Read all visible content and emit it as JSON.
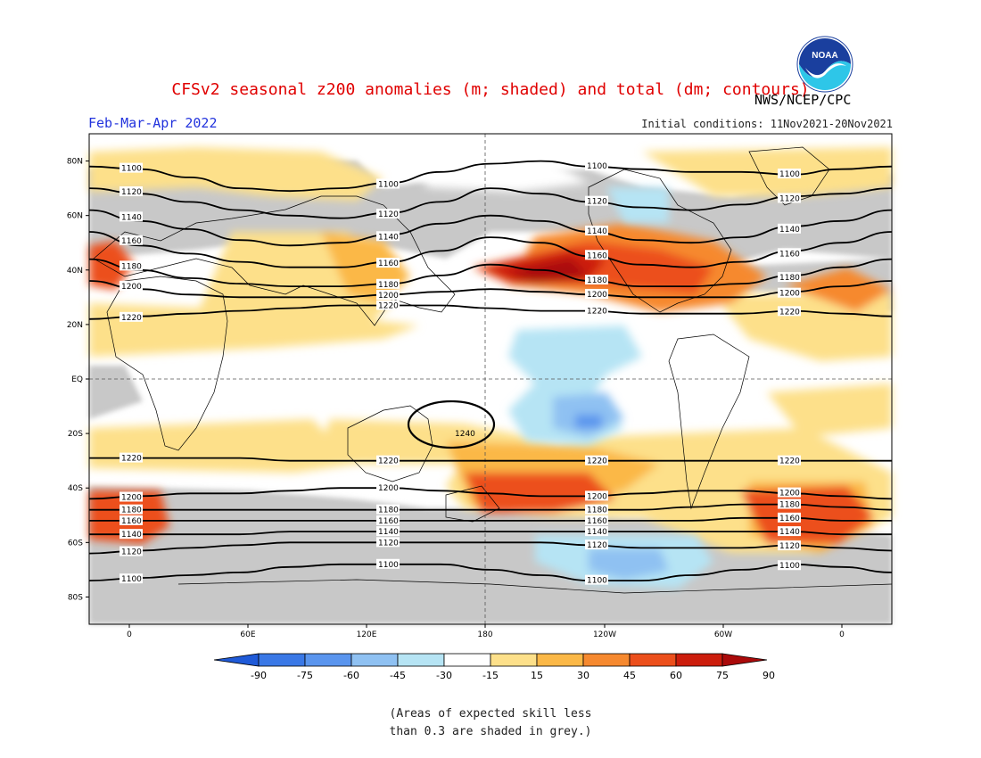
{
  "title": "CFSv2 seasonal z200 anomalies (m; shaded) and total (dm; contours)",
  "agency": "NWS/NCEP/CPC",
  "period": "Feb-Mar-Apr 2022",
  "initial_conditions": "Initial conditions: 11Nov2021-20Nov2021",
  "logo_text": "NOAA",
  "note": "(Areas of expected skill less\nthan 0.3 are shaded in grey.)",
  "lat_ticks": [
    "80N",
    "60N",
    "40N",
    "20N",
    "EQ",
    "20S",
    "40S",
    "60S",
    "80S"
  ],
  "lon_ticks": [
    "0",
    "60E",
    "120E",
    "180",
    "120W",
    "60W",
    "0"
  ],
  "colorbar": {
    "labels": [
      "-90",
      "-75",
      "-60",
      "-45",
      "-30",
      "-15",
      "15",
      "30",
      "45",
      "60",
      "75",
      "90"
    ],
    "colors": [
      "#1f5ad8",
      "#3a78e6",
      "#5a95ee",
      "#8fc1f2",
      "#b6e4f4",
      "#ffffff",
      "#fde08a",
      "#fbb847",
      "#f6892f",
      "#ec4f1c",
      "#cc1d0c",
      "#aa0a0a"
    ]
  },
  "contours": [
    {
      "label": "1100",
      "lat": [
        78,
        77,
        74,
        70,
        69,
        70,
        72,
        76,
        79,
        80,
        78,
        77,
        76,
        76,
        75,
        77,
        78
      ]
    },
    {
      "label": "1120",
      "lat": [
        70,
        68,
        65,
        62,
        60,
        59,
        61,
        65,
        70,
        68,
        65,
        63,
        62,
        64,
        67,
        68,
        70
      ]
    },
    {
      "label": "1140",
      "lat": [
        62,
        58,
        55,
        51,
        49,
        50,
        53,
        57,
        60,
        58,
        54,
        51,
        50,
        52,
        56,
        58,
        62
      ]
    },
    {
      "label": "1160",
      "lat": [
        54,
        49,
        46,
        43,
        41,
        41,
        43,
        47,
        52,
        50,
        45,
        42,
        41,
        43,
        47,
        50,
        54
      ]
    },
    {
      "label": "1180",
      "lat": [
        44,
        40,
        37,
        35,
        34,
        34,
        35,
        38,
        42,
        40,
        36,
        34,
        34,
        35,
        38,
        41,
        44
      ]
    },
    {
      "label": "1200",
      "lat": [
        36,
        33,
        31,
        30,
        30,
        30,
        31,
        32,
        33,
        32,
        31,
        30,
        30,
        30,
        32,
        34,
        36
      ]
    },
    {
      "label": "1220",
      "lat": [
        22,
        23,
        24,
        25,
        26,
        27,
        27,
        27,
        26,
        25,
        25,
        24,
        24,
        24,
        25,
        24,
        23
      ]
    },
    {
      "label": "1220",
      "lat": [
        -29,
        -29,
        -29,
        -29,
        -30,
        -30,
        -30,
        -30,
        -30,
        -30,
        -30,
        -30,
        -30,
        -30,
        -30,
        -30,
        -30
      ]
    },
    {
      "label": "1200",
      "lat": [
        -44,
        -43,
        -42,
        -42,
        -41,
        -40,
        -40,
        -41,
        -42,
        -43,
        -43,
        -42,
        -41,
        -41,
        -42,
        -43,
        -44
      ]
    },
    {
      "label": "1180",
      "lat": [
        -48,
        -48,
        -48,
        -48,
        -48,
        -48,
        -48,
        -48,
        -48,
        -48,
        -48,
        -48,
        -47,
        -46,
        -46,
        -47,
        -48
      ]
    },
    {
      "label": "1160",
      "lat": [
        -52,
        -52,
        -52,
        -52,
        -52,
        -52,
        -52,
        -52,
        -52,
        -52,
        -52,
        -52,
        -52,
        -51,
        -51,
        -52,
        -52
      ]
    },
    {
      "label": "1140",
      "lat": [
        -57,
        -57,
        -57,
        -57,
        -56,
        -56,
        -56,
        -56,
        -56,
        -56,
        -56,
        -56,
        -56,
        -56,
        -56,
        -57,
        -57
      ]
    },
    {
      "label": "1120",
      "lat": [
        -64,
        -63,
        -62,
        -61,
        -60,
        -60,
        -60,
        -60,
        -60,
        -60,
        -61,
        -62,
        -62,
        -62,
        -61,
        -62,
        -63
      ]
    },
    {
      "label": "1100",
      "lat": [
        -74,
        -73,
        -72,
        -71,
        -69,
        -68,
        -68,
        -68,
        -70,
        -72,
        -74,
        -74,
        -72,
        -70,
        -68,
        -69,
        -71
      ]
    }
  ],
  "closed_contour_label": "1240"
}
